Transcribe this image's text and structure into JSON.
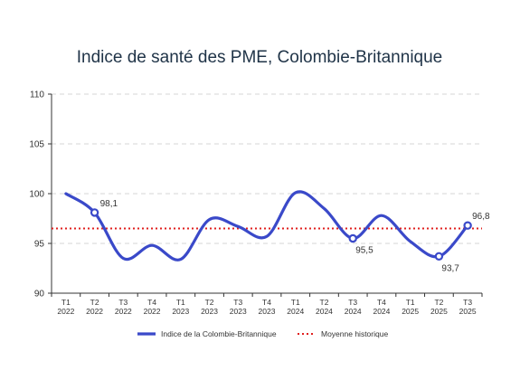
{
  "chart_data": {
    "type": "line",
    "title": "Indice de santé des PME, Colombie-Britannique",
    "xlabel": "",
    "ylabel": "",
    "ylim": [
      90,
      110
    ],
    "yticks": [
      "90",
      "95",
      "100",
      "105",
      "110"
    ],
    "grid": "horizontal dashed",
    "legend_position": "bottom",
    "categories": [
      [
        "T1",
        "2022"
      ],
      [
        "T2",
        "2022"
      ],
      [
        "T3",
        "2022"
      ],
      [
        "T4",
        "2022"
      ],
      [
        "T1",
        "2023"
      ],
      [
        "T2",
        "2023"
      ],
      [
        "T3",
        "2023"
      ],
      [
        "T4",
        "2023"
      ],
      [
        "T1",
        "2024"
      ],
      [
        "T2",
        "2024"
      ],
      [
        "T3",
        "2024"
      ],
      [
        "T4",
        "2024"
      ],
      [
        "T1",
        "2025"
      ],
      [
        "T2",
        "2025"
      ],
      [
        "T3",
        "2025"
      ]
    ],
    "series": [
      {
        "name": "Indice de la Colombie-Britannique",
        "color": "#3a49c9",
        "values": [
          100.0,
          98.1,
          93.5,
          94.8,
          93.4,
          97.4,
          96.7,
          95.7,
          100.1,
          98.5,
          95.5,
          97.8,
          95.2,
          93.7,
          96.8
        ]
      },
      {
        "name": "Moyenne historique",
        "color": "#e0201f",
        "style": "dotted",
        "value": 96.5
      }
    ],
    "annotations": [
      {
        "index": 1,
        "label": "98,1",
        "position": "right"
      },
      {
        "index": 10,
        "label": "95,5",
        "position": "below"
      },
      {
        "index": 13,
        "label": "93,7",
        "position": "below"
      },
      {
        "index": 14,
        "label": "96,8",
        "position": "above"
      }
    ]
  }
}
